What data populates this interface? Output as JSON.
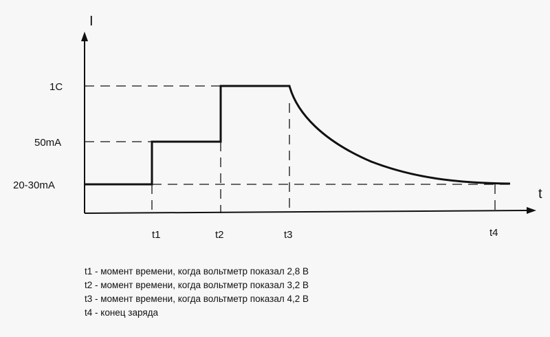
{
  "diagram": {
    "axes": {
      "y_label": "I",
      "x_label": "t"
    },
    "levels": [
      "1C",
      "50mA",
      "20-30mA"
    ],
    "time_marks": [
      "t1",
      "t2",
      "t3",
      "t4"
    ]
  },
  "legend": [
    "t1 - момент времени, когда вольтметр показал 2,8 В",
    "t2 - момент времени, когда вольтметр показал 3,2 В",
    "t3 - момент времени, когда вольтметр показал 4,2 В",
    "t4 - конец заряда"
  ],
  "colors": {
    "ink": "#111111",
    "background": "#f7f7f7"
  }
}
